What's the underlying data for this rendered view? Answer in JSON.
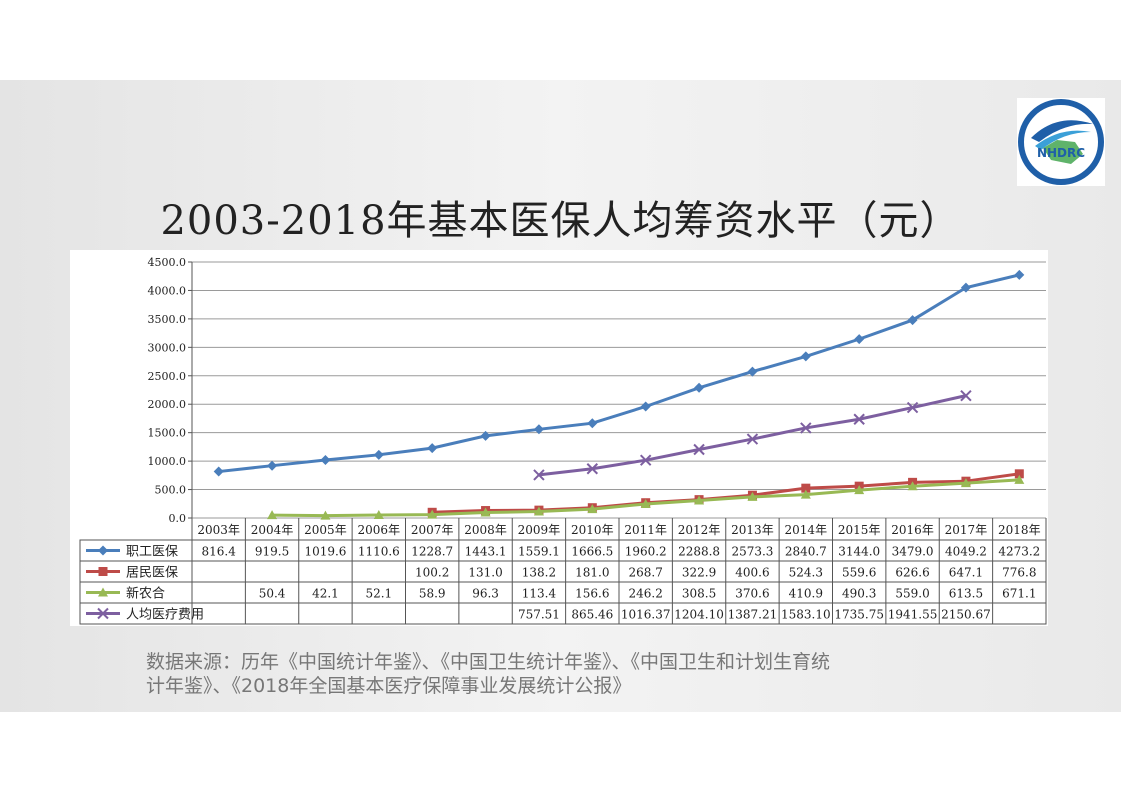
{
  "title": "2003-2018年基本医保人均筹资水平（元）",
  "logo_text": "NHDRC",
  "source": {
    "line1": "数据来源：历年《中国统计年鉴》、《中国卫生统计年鉴》、《中国卫生和计划生育统",
    "line2": "计年鉴》、《2018年全国基本医疗保障事业发展统计公报》"
  },
  "chart_data": {
    "type": "line",
    "title": "2003-2018年基本医保人均筹资水平（元）",
    "ylim": [
      0,
      4500
    ],
    "yticks": [
      "0.0",
      "500.0",
      "1000.0",
      "1500.0",
      "2000.0",
      "2500.0",
      "3000.0",
      "3500.0",
      "4000.0",
      "4500.0"
    ],
    "ytick_values": [
      0,
      500,
      1000,
      1500,
      2000,
      2500,
      3000,
      3500,
      4000,
      4500
    ],
    "grid": true,
    "categories": [
      "2003年",
      "2004年",
      "2005年",
      "2006年",
      "2007年",
      "2008年",
      "2009年",
      "2010年",
      "2011年",
      "2012年",
      "2013年",
      "2014年",
      "2015年",
      "2016年",
      "2017年",
      "2018年"
    ],
    "series": [
      {
        "name": "职工医保",
        "color": "#4a7ebb",
        "marker": "diamond",
        "values": [
          816.4,
          919.5,
          1019.6,
          1110.6,
          1228.7,
          1443.1,
          1559.1,
          1666.5,
          1960.2,
          2288.8,
          2573.3,
          2840.7,
          3144.0,
          3479.0,
          4049.2,
          4273.2
        ],
        "labels": [
          "816.4",
          "919.5",
          "1019.6",
          "1110.6",
          "1228.7",
          "1443.1",
          "1559.1",
          "1666.5",
          "1960.2",
          "2288.8",
          "2573.3",
          "2840.7",
          "3144.0",
          "3479.0",
          "4049.2",
          "4273.2"
        ]
      },
      {
        "name": "居民医保",
        "color": "#be4b48",
        "marker": "square",
        "values": [
          null,
          null,
          null,
          null,
          100.2,
          131.0,
          138.2,
          181.0,
          268.7,
          322.9,
          400.6,
          524.3,
          559.6,
          626.6,
          647.1,
          776.8
        ],
        "labels": [
          "",
          "",
          "",
          "",
          "100.2",
          "131.0",
          "138.2",
          "181.0",
          "268.7",
          "322.9",
          "400.6",
          "524.3",
          "559.6",
          "626.6",
          "647.1",
          "776.8"
        ]
      },
      {
        "name": "新农合",
        "color": "#98b954",
        "marker": "triangle",
        "values": [
          null,
          50.4,
          42.1,
          52.1,
          58.9,
          96.3,
          113.4,
          156.6,
          246.2,
          308.5,
          370.6,
          410.9,
          490.3,
          559.0,
          613.5,
          671.1
        ],
        "labels": [
          "",
          "50.4",
          "42.1",
          "52.1",
          "58.9",
          "96.3",
          "113.4",
          "156.6",
          "246.2",
          "308.5",
          "370.6",
          "410.9",
          "490.3",
          "559.0",
          "613.5",
          "671.1"
        ]
      },
      {
        "name": "人均医疗费用",
        "color": "#7d5fa0",
        "marker": "x",
        "values": [
          null,
          null,
          null,
          null,
          null,
          null,
          757.51,
          865.46,
          1016.37,
          1204.1,
          1387.21,
          1583.1,
          1735.75,
          1941.55,
          2150.67,
          null
        ],
        "labels": [
          "",
          "",
          "",
          "",
          "",
          "",
          "757.51",
          "865.46",
          "1016.37",
          "1204.10",
          "1387.21",
          "1583.10",
          "1735.75",
          "1941.55",
          "2150.67",
          ""
        ]
      }
    ]
  }
}
